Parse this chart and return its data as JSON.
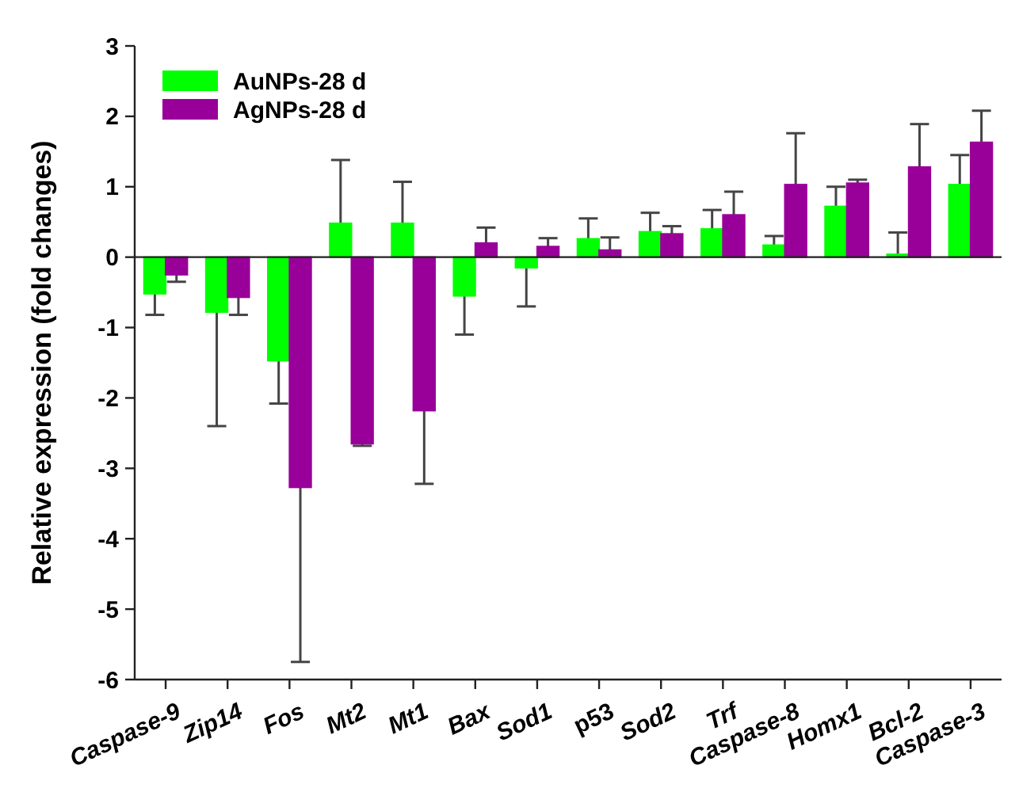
{
  "chart_data": {
    "type": "bar",
    "ylabel": "Relative expression (fold changes)",
    "categories": [
      "Caspase-9",
      "Zip14",
      "Fos",
      "Mt2",
      "Mt1",
      "Bax",
      "Sod1",
      "p53",
      "Sod2",
      "Trf",
      "Caspase-8",
      "Homx1",
      "Bcl-2",
      "Caspase-3"
    ],
    "series": [
      {
        "name": "AuNPs-28 d",
        "color": "#00ff00",
        "values": [
          -0.52,
          -0.78,
          -1.47,
          0.48,
          0.48,
          -0.55,
          -0.15,
          0.26,
          0.36,
          0.4,
          0.17,
          0.72,
          0.04,
          1.03
        ],
        "errors": [
          [
            -0.82,
            -0.52
          ],
          [
            -2.4,
            -0.78
          ],
          [
            -2.08,
            -1.47
          ],
          [
            0.48,
            1.38
          ],
          [
            0.48,
            1.07
          ],
          [
            -1.1,
            -0.55
          ],
          [
            -0.7,
            -0.15
          ],
          [
            0.26,
            0.55
          ],
          [
            0.36,
            0.63
          ],
          [
            0.4,
            0.67
          ],
          [
            0.17,
            0.3
          ],
          [
            0.72,
            1.0
          ],
          [
            0.04,
            0.35
          ],
          [
            1.03,
            1.45
          ]
        ]
      },
      {
        "name": "AgNPs-28 d",
        "color": "#990099",
        "values": [
          -0.25,
          -0.57,
          -3.27,
          -2.65,
          -2.18,
          0.2,
          0.15,
          0.1,
          0.33,
          0.6,
          1.03,
          1.05,
          1.28,
          1.63
        ],
        "errors": [
          [
            -0.35,
            -0.25
          ],
          [
            -0.82,
            -0.57
          ],
          [
            -5.75,
            -3.27
          ],
          [
            -2.68,
            -2.65
          ],
          [
            -3.22,
            -2.18
          ],
          [
            0.2,
            0.42
          ],
          [
            0.15,
            0.27
          ],
          [
            0.1,
            0.28
          ],
          [
            0.33,
            0.44
          ],
          [
            0.6,
            0.93
          ],
          [
            1.03,
            1.76
          ],
          [
            1.05,
            1.1
          ],
          [
            1.28,
            1.89
          ],
          [
            1.63,
            2.08
          ]
        ]
      }
    ],
    "ylim": [
      -6,
      3
    ],
    "yticks": [
      -6,
      -5,
      -4,
      -3,
      -2,
      -1,
      0,
      1,
      2,
      3
    ],
    "legend": "top left"
  }
}
